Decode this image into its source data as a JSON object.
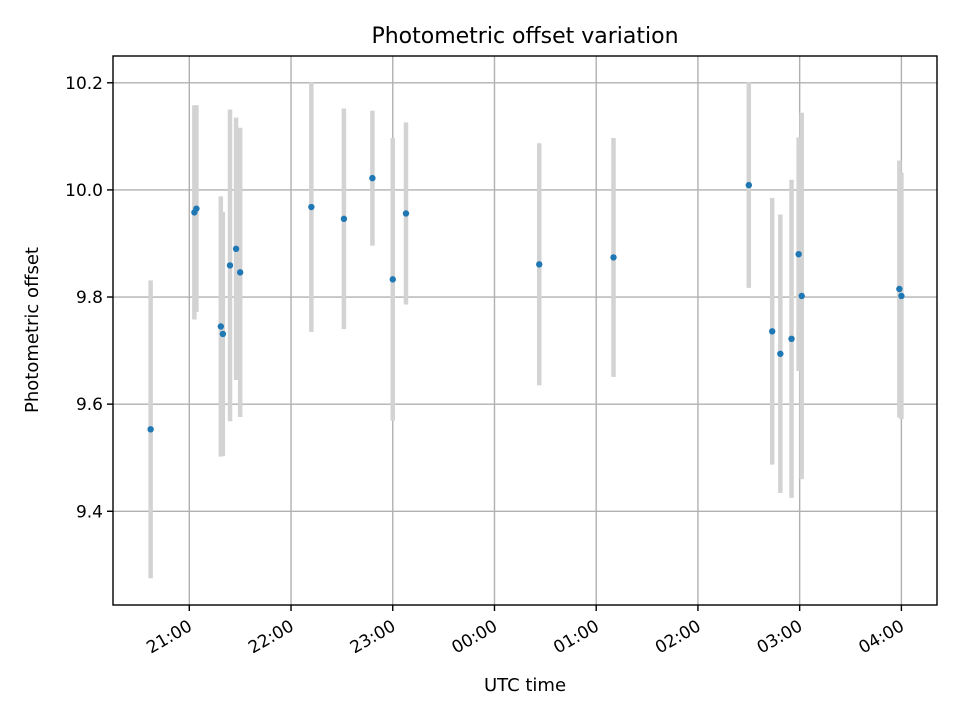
{
  "chart_data": {
    "type": "scatter",
    "title": "Photometric offset variation",
    "xlabel": "UTC time",
    "ylabel": "Photometric offset",
    "x_unit": "time of night (hours, 24 = 00:00 of next day)",
    "xlim": [
      20.25,
      28.35
    ],
    "ylim": [
      9.225,
      10.25
    ],
    "xticks": [
      {
        "value": 21,
        "label": "21:00"
      },
      {
        "value": 22,
        "label": "22:00"
      },
      {
        "value": 23,
        "label": "23:00"
      },
      {
        "value": 24,
        "label": "00:00"
      },
      {
        "value": 25,
        "label": "01:00"
      },
      {
        "value": 26,
        "label": "02:00"
      },
      {
        "value": 27,
        "label": "03:00"
      },
      {
        "value": 28,
        "label": "04:00"
      }
    ],
    "yticks": [
      {
        "value": 9.4,
        "label": "9.4"
      },
      {
        "value": 9.6,
        "label": "9.6"
      },
      {
        "value": 9.8,
        "label": "9.8"
      },
      {
        "value": 10.0,
        "label": "10.0"
      },
      {
        "value": 10.2,
        "label": "10.2"
      }
    ],
    "grid": true,
    "colors": {
      "marker": "#1f77b4",
      "errorbar": "#d3d3d3",
      "grid": "#b0b0b0"
    },
    "points": [
      {
        "x": 20.62,
        "y": 9.553,
        "err": 0.278
      },
      {
        "x": 21.05,
        "y": 9.958,
        "err": 0.2
      },
      {
        "x": 21.07,
        "y": 9.965,
        "err": 0.193
      },
      {
        "x": 21.31,
        "y": 9.745,
        "err": 0.243
      },
      {
        "x": 21.33,
        "y": 9.731,
        "err": 0.228
      },
      {
        "x": 21.4,
        "y": 9.859,
        "err": 0.291
      },
      {
        "x": 21.46,
        "y": 9.89,
        "err": 0.245
      },
      {
        "x": 21.5,
        "y": 9.846,
        "err": 0.27
      },
      {
        "x": 22.2,
        "y": 9.968,
        "err": 0.233
      },
      {
        "x": 22.52,
        "y": 9.946,
        "err": 0.206
      },
      {
        "x": 22.8,
        "y": 10.022,
        "err": 0.126
      },
      {
        "x": 23.0,
        "y": 9.833,
        "err": 0.264
      },
      {
        "x": 23.13,
        "y": 9.956,
        "err": 0.17
      },
      {
        "x": 24.44,
        "y": 9.861,
        "err": 0.226
      },
      {
        "x": 25.17,
        "y": 9.874,
        "err": 0.223
      },
      {
        "x": 26.5,
        "y": 10.009,
        "err": 0.192
      },
      {
        "x": 26.73,
        "y": 9.736,
        "err": 0.249
      },
      {
        "x": 26.81,
        "y": 9.694,
        "err": 0.26
      },
      {
        "x": 26.92,
        "y": 9.722,
        "err": 0.297
      },
      {
        "x": 26.99,
        "y": 9.88,
        "err": 0.218
      },
      {
        "x": 27.02,
        "y": 9.802,
        "err": 0.342
      },
      {
        "x": 27.98,
        "y": 9.815,
        "err": 0.24
      },
      {
        "x": 28.0,
        "y": 9.802,
        "err": 0.23
      }
    ]
  }
}
